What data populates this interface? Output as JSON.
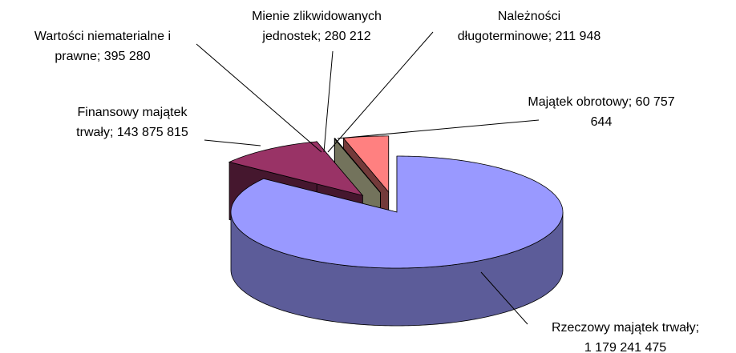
{
  "chart_data": {
    "type": "pie",
    "style": "3d-exploded",
    "labels": [
      "Rzeczowy majątek trwały;\n1 179 241 475",
      "Finansowy majątek\ntrwały; 143 875 815",
      "Wartości niematerialne i\nprawne; 395 280",
      "Mienie zlikwidowanych\njednostek; 280 212",
      "Należności\ndługoterminowe; 211 948",
      "Majątek obrotowy; 60 757\n644"
    ],
    "values": [
      1179241475,
      143875815,
      395280,
      280212,
      211948,
      60757644
    ],
    "colors": [
      "#9999ff",
      "#993366",
      "#ffffcc",
      "#ccffff",
      "#808050",
      "#ff8080"
    ]
  }
}
